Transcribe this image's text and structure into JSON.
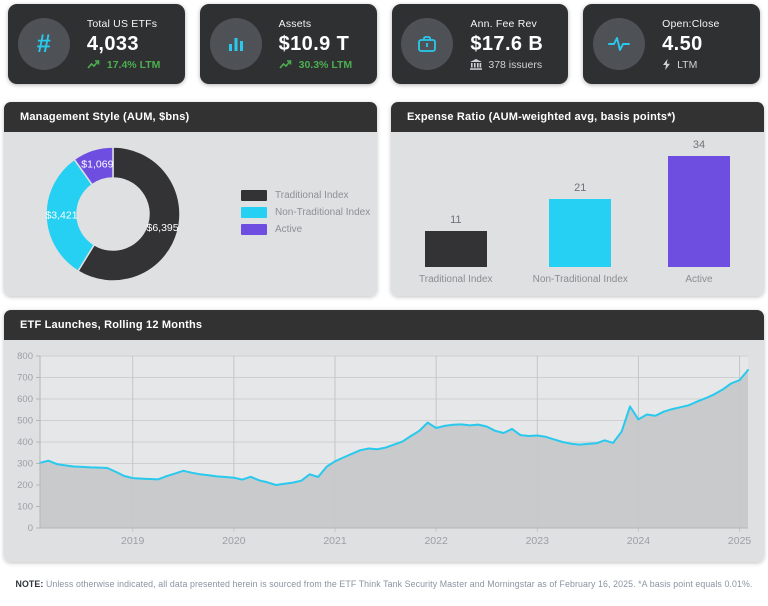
{
  "colors": {
    "card_bg": "#2f3032",
    "icon_circle_bg": "#4e5256",
    "accent_cyan": "#29c9ee",
    "positive_green": "#4dae50",
    "panel_header_bg": "#323233",
    "panel_body_bg": "#dfe0e1",
    "dark_series": "#333336",
    "cyan_series": "#25d0f2",
    "purple_series": "#6e4ee0",
    "line_color": "#29c9ee",
    "area_fill": "#c6c8ca",
    "axis_text": "#9aa0a6"
  },
  "cards": [
    {
      "title": "Total US ETFs",
      "value": "4,033",
      "sub": "17.4% LTM",
      "icon": "hash-icon",
      "sub_icon": "trend-up-icon",
      "sub_type": "positive"
    },
    {
      "title": "Assets",
      "value": "$10.9 T",
      "sub": "30.3% LTM",
      "icon": "bar-chart-icon",
      "sub_icon": "trend-up-icon",
      "sub_type": "positive"
    },
    {
      "title": "Ann. Fee Rev",
      "value": "$17.6 B",
      "sub": "378 issuers",
      "icon": "briefcase-icon",
      "sub_icon": "bank-icon",
      "sub_type": "neutral"
    },
    {
      "title": "Open:Close",
      "value": "4.50",
      "sub": "LTM",
      "icon": "activity-icon",
      "sub_icon": "bolt-icon",
      "sub_type": "neutral"
    }
  ],
  "chart_data": [
    {
      "type": "pie",
      "subtype": "donut",
      "title": "Management Style (AUM, $bns)",
      "labels": [
        "Traditional Index",
        "Non-Traditional Index",
        "Active"
      ],
      "values": [
        6395,
        3421,
        1069
      ],
      "value_labels": [
        "$6,395",
        "$3,421",
        "$1,069"
      ],
      "colors": [
        "#333336",
        "#25d0f2",
        "#6e4ee0"
      ],
      "legend_position": "right",
      "start_angle_deg": 0,
      "direction": "clockwise"
    },
    {
      "type": "bar",
      "title": "Expense Ratio (AUM-weighted avg, basis points*)",
      "categories": [
        "Traditional Index",
        "Non-Traditional Index",
        "Active"
      ],
      "values": [
        11,
        21,
        34
      ],
      "colors": [
        "#333336",
        "#25d0f2",
        "#6e4ee0"
      ],
      "ylim": [
        0,
        40
      ],
      "value_labels_shown": true,
      "grid": false
    },
    {
      "type": "line",
      "subtype": "area",
      "title": "ETF Launches, Rolling 12 Months",
      "x_start": "2018-02",
      "frequency": "monthly",
      "values": [
        303,
        313,
        297,
        291,
        286,
        284,
        282,
        281,
        279,
        261,
        242,
        232,
        230,
        228,
        226,
        241,
        253,
        266,
        257,
        250,
        245,
        240,
        237,
        234,
        225,
        238,
        222,
        212,
        200,
        206,
        211,
        220,
        250,
        237,
        285,
        310,
        328,
        345,
        362,
        370,
        366,
        374,
        388,
        402,
        428,
        452,
        490,
        465,
        475,
        480,
        482,
        477,
        481,
        472,
        452,
        442,
        461,
        432,
        428,
        430,
        424,
        412,
        400,
        392,
        388,
        391,
        394,
        408,
        396,
        448,
        565,
        505,
        528,
        522,
        541,
        553,
        562,
        571,
        589,
        604,
        622,
        644,
        672,
        688,
        735
      ],
      "x_tick_labels": [
        "2019",
        "2020",
        "2021",
        "2022",
        "2023",
        "2024",
        "2025"
      ],
      "x_tick_indices": [
        11,
        23,
        35,
        47,
        59,
        71,
        83
      ],
      "ylim": [
        0,
        800
      ],
      "y_ticks": [
        0,
        100,
        200,
        300,
        400,
        500,
        600,
        700,
        800
      ],
      "grid": true,
      "line_color": "#29c9ee",
      "area_fill": "#c6c8ca"
    }
  ],
  "note": {
    "label": "NOTE:",
    "text": "Unless otherwise indicated, all data presented herein is sourced from the ETF Think Tank Security Master and Morningstar as of February 16, 2025. *A basis point equals 0.01%."
  }
}
